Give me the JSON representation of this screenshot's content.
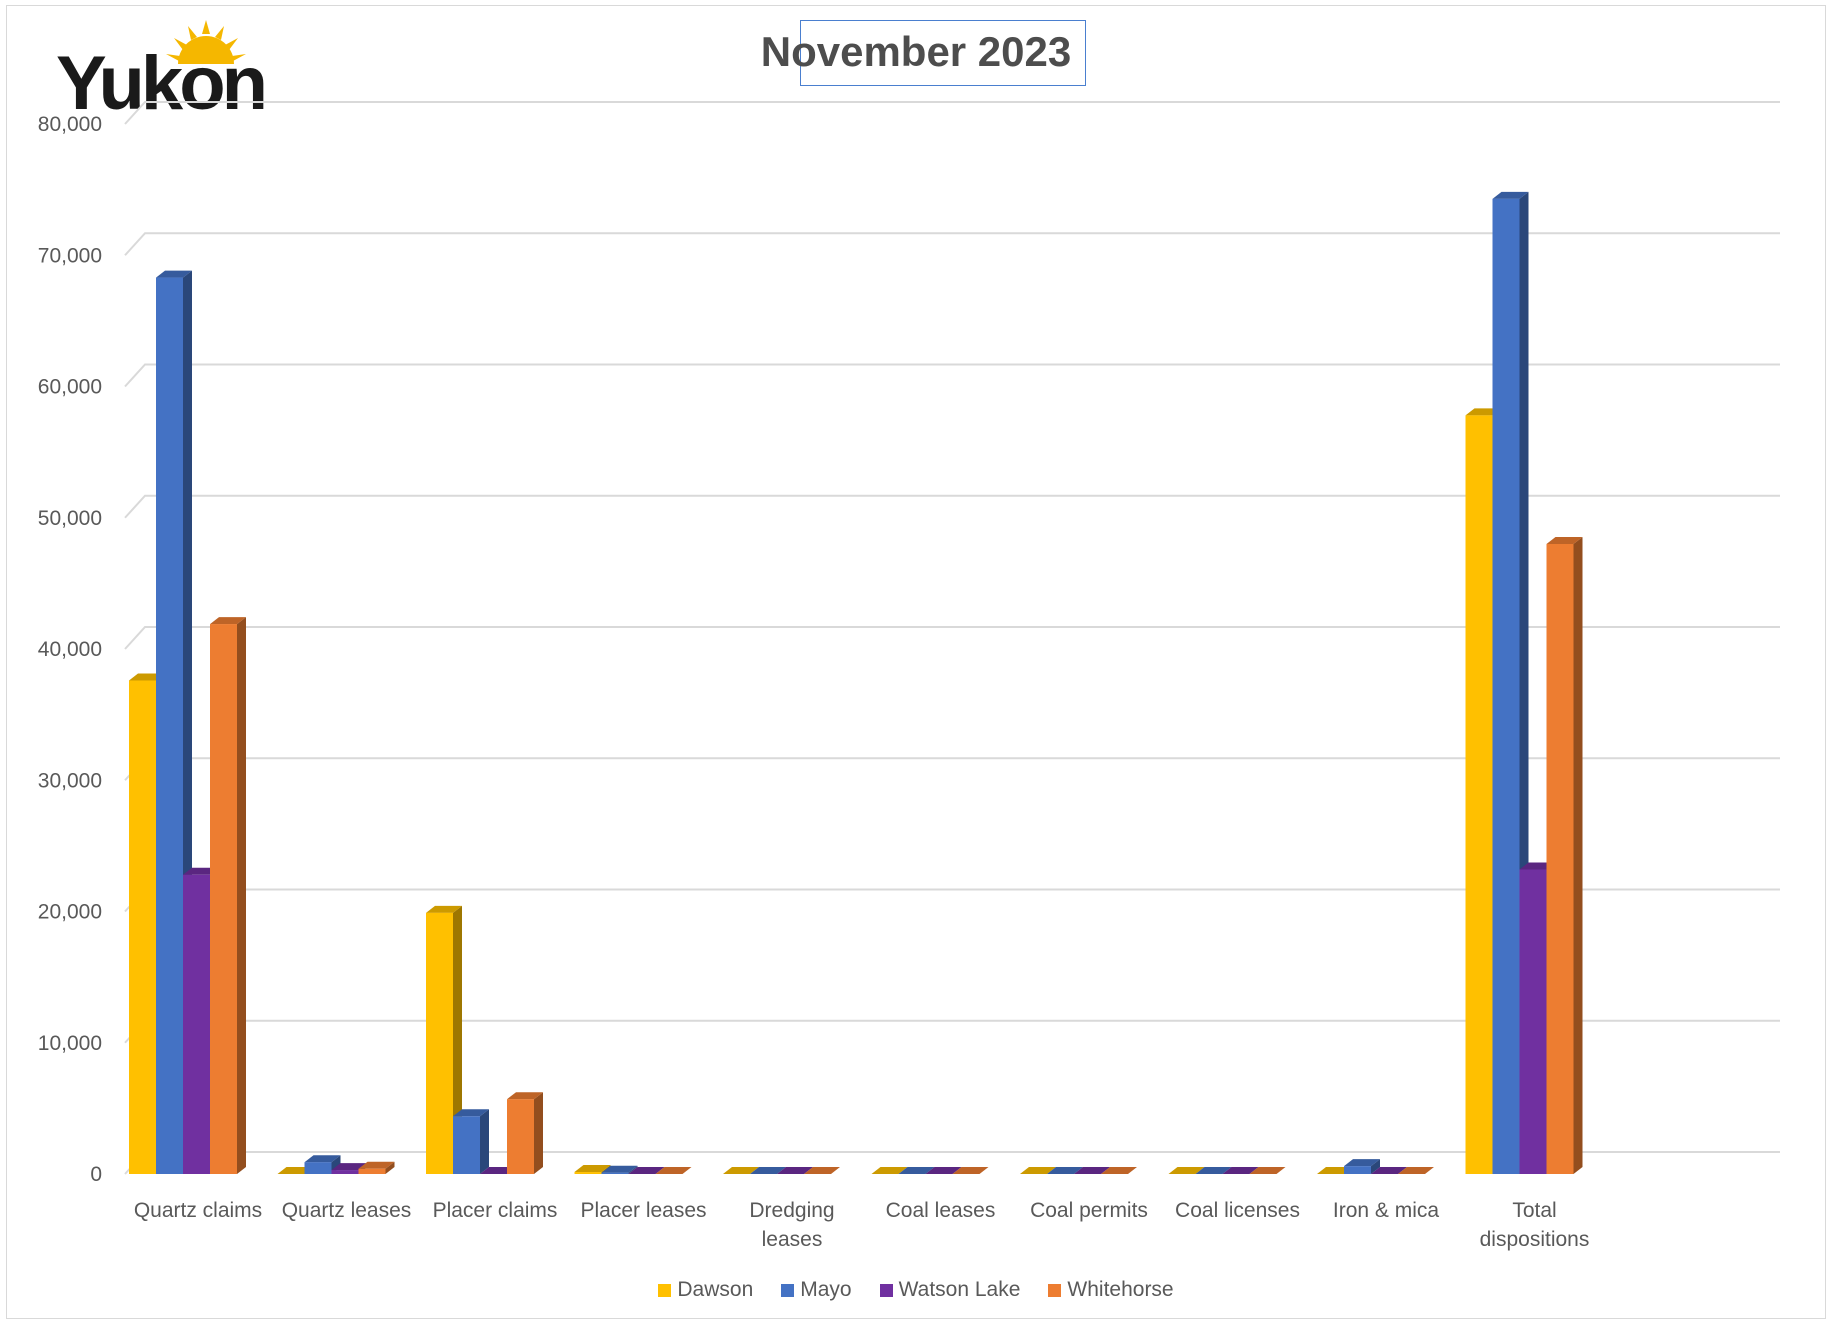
{
  "logo": {
    "text": "Yukon"
  },
  "colors": {
    "Dawson": "#FFC000",
    "Mayo": "#4472C4",
    "Watson Lake": "#7030A0",
    "Whitehorse": "#ED7D31"
  },
  "chart_data": {
    "type": "bar",
    "title": "November 2023",
    "xlabel": "",
    "ylabel": "",
    "ylim": [
      0,
      80000
    ],
    "yticks": [
      0,
      10000,
      20000,
      30000,
      40000,
      50000,
      60000,
      70000,
      80000
    ],
    "ytick_labels": [
      "0",
      "10,000",
      "20,000",
      "30,000",
      "40,000",
      "50,000",
      "60,000",
      "70,000",
      "80,000"
    ],
    "grid": true,
    "legend_position": "bottom",
    "categories": [
      [
        "Quartz claims"
      ],
      [
        "Quartz leases"
      ],
      [
        "Placer claims"
      ],
      [
        "Placer leases"
      ],
      [
        "Dredging",
        "leases"
      ],
      [
        "Coal leases"
      ],
      [
        "Coal permits"
      ],
      [
        "Coal licenses"
      ],
      [
        "Iron & mica"
      ],
      [
        "Total",
        "dispositions"
      ]
    ],
    "series": [
      {
        "name": "Dawson",
        "values": [
          37600,
          0,
          19900,
          150,
          0,
          0,
          0,
          0,
          0,
          57800
        ]
      },
      {
        "name": "Mayo",
        "values": [
          68300,
          900,
          4400,
          100,
          0,
          0,
          0,
          0,
          600,
          74300
        ]
      },
      {
        "name": "Watson Lake",
        "values": [
          22800,
          300,
          0,
          0,
          0,
          0,
          0,
          0,
          0,
          23200
        ]
      },
      {
        "name": "Whitehorse",
        "values": [
          41900,
          400,
          5700,
          0,
          0,
          0,
          0,
          0,
          0,
          48000
        ]
      }
    ]
  }
}
